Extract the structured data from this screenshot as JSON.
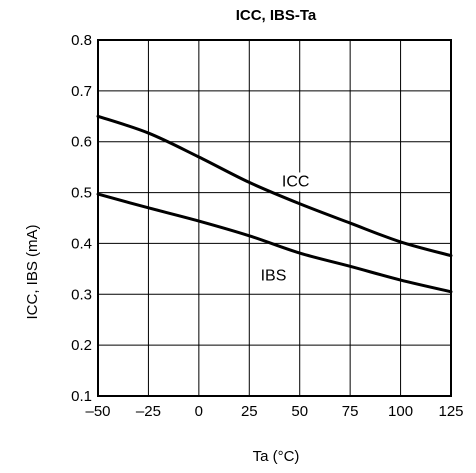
{
  "chart_data": {
    "type": "line",
    "title": "ICC, IBS-Ta",
    "xlabel": "Ta (°C)",
    "ylabel": "ICC, IBS (mA)",
    "xlim": [
      -50,
      125
    ],
    "ylim": [
      0.1,
      0.8
    ],
    "xticks": [
      -50,
      -25,
      0,
      25,
      50,
      75,
      100,
      125
    ],
    "xtick_labels": [
      "–50",
      "–25",
      "0",
      "25",
      "50",
      "75",
      "100",
      "125"
    ],
    "yticks": [
      0.1,
      0.2,
      0.3,
      0.4,
      0.5,
      0.6,
      0.7,
      0.8
    ],
    "ytick_labels": [
      "0.1",
      "0.2",
      "0.3",
      "0.4",
      "0.5",
      "0.6",
      "0.7",
      "0.8"
    ],
    "grid": true,
    "series": [
      {
        "name": "ICC",
        "x": [
          -50,
          -25,
          0,
          25,
          50,
          75,
          100,
          125
        ],
        "values": [
          0.65,
          0.617,
          0.57,
          0.52,
          0.478,
          0.44,
          0.403,
          0.376
        ]
      },
      {
        "name": "IBS",
        "x": [
          -50,
          -25,
          0,
          25,
          50,
          75,
          100,
          125
        ],
        "values": [
          0.497,
          0.47,
          0.444,
          0.415,
          0.381,
          0.355,
          0.328,
          0.305
        ]
      }
    ]
  }
}
